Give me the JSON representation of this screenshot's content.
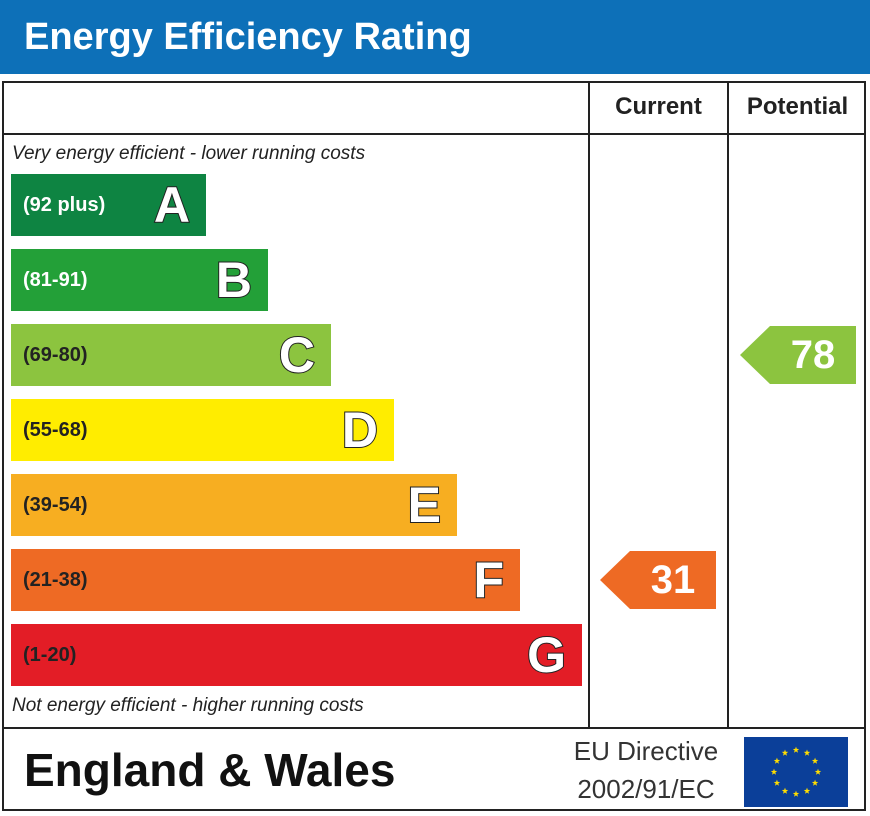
{
  "title": "Energy Efficiency Rating",
  "columns": {
    "current": "Current",
    "potential": "Potential"
  },
  "notes": {
    "top": "Very energy efficient - lower running costs",
    "bottom": "Not energy efficient - higher running costs"
  },
  "chart_data": {
    "type": "bar",
    "title": "Energy Efficiency Rating",
    "categories": [
      "A",
      "B",
      "C",
      "D",
      "E",
      "F",
      "G"
    ],
    "bands": [
      {
        "letter": "A",
        "range": "(92 plus)",
        "color": "#0e8442",
        "range_color": "#ffffff"
      },
      {
        "letter": "B",
        "range": "(81-91)",
        "color": "#23a038",
        "range_color": "#ffffff"
      },
      {
        "letter": "C",
        "range": "(69-80)",
        "color": "#8cc43f",
        "range_color": "#222222"
      },
      {
        "letter": "D",
        "range": "(55-68)",
        "color": "#ffed00",
        "range_color": "#222222"
      },
      {
        "letter": "E",
        "range": "(39-54)",
        "color": "#f7ae21",
        "range_color": "#222222"
      },
      {
        "letter": "F",
        "range": "(21-38)",
        "color": "#ee6a24",
        "range_color": "#222222"
      },
      {
        "letter": "G",
        "range": "(1-20)",
        "color": "#e31d26",
        "range_color": "#222222"
      }
    ],
    "current": {
      "value": 31,
      "band": "F",
      "color": "#ee6a24"
    },
    "potential": {
      "value": 78,
      "band": "C",
      "color": "#8cc43f"
    }
  },
  "footer": {
    "region": "England & Wales",
    "directive_line1": "EU Directive",
    "directive_line2": "2002/91/EC",
    "flag_icon": "eu-flag-icon",
    "flag_blue": "#0b3f99",
    "flag_star": "#ffdd00"
  }
}
